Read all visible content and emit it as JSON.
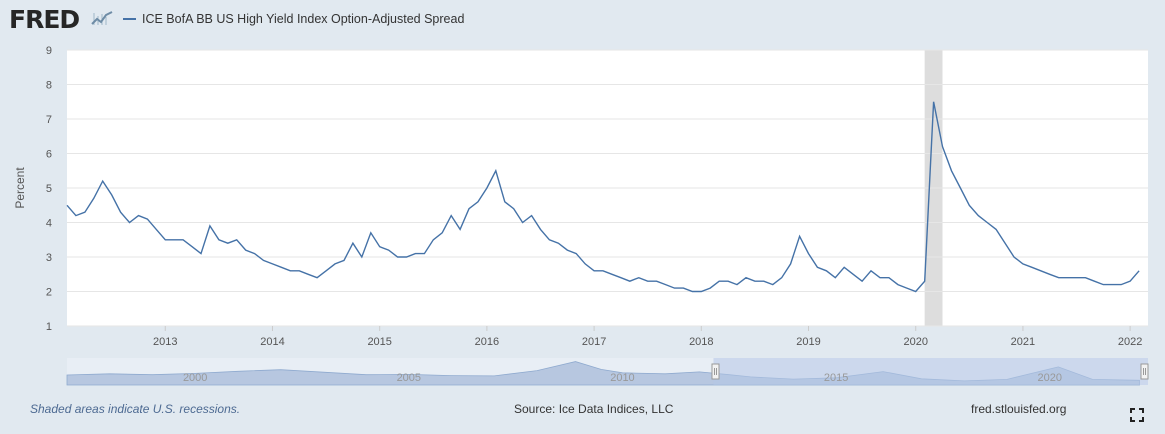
{
  "header": {
    "logo_text": "FRED",
    "logo_mark": "line-graph-icon",
    "legend_label": "ICE BofA BB US High Yield Index Option-Adjusted Spread",
    "series_color": "#4572a7"
  },
  "footer": {
    "recession_note": "Shaded areas indicate U.S. recessions.",
    "source": "Source: Ice Data Indices, LLC",
    "site": "fred.stlouisfed.org",
    "fullscreen_icon": "fullscreen-icon"
  },
  "colors": {
    "recession_shade": "#dddddd",
    "navigator_fill": "#b7c7e0",
    "navigator_selection": "#b4c6e6"
  },
  "chart_data": {
    "type": "line",
    "ylabel": "Percent",
    "xlabel": "",
    "ylim": [
      1,
      9
    ],
    "yticks": [
      "1",
      "2",
      "3",
      "4",
      "5",
      "6",
      "7",
      "8",
      "9"
    ],
    "xlim": [
      "2012-02",
      "2022-03"
    ],
    "xticks": [
      "2013",
      "2014",
      "2015",
      "2016",
      "2017",
      "2018",
      "2019",
      "2020",
      "2021",
      "2022"
    ],
    "grid": true,
    "recession": {
      "start": "2020-02",
      "end": "2020-04"
    },
    "series": [
      {
        "name": "ICE BofA BB US High Yield Index Option-Adjusted Spread",
        "x": [
          "2012-02",
          "2012-03",
          "2012-04",
          "2012-05",
          "2012-06",
          "2012-07",
          "2012-08",
          "2012-09",
          "2012-10",
          "2012-11",
          "2012-12",
          "2013-01",
          "2013-02",
          "2013-03",
          "2013-04",
          "2013-05",
          "2013-06",
          "2013-07",
          "2013-08",
          "2013-09",
          "2013-10",
          "2013-11",
          "2013-12",
          "2014-01",
          "2014-02",
          "2014-03",
          "2014-04",
          "2014-05",
          "2014-06",
          "2014-07",
          "2014-08",
          "2014-09",
          "2014-10",
          "2014-11",
          "2014-12",
          "2015-01",
          "2015-02",
          "2015-03",
          "2015-04",
          "2015-05",
          "2015-06",
          "2015-07",
          "2015-08",
          "2015-09",
          "2015-10",
          "2015-11",
          "2015-12",
          "2016-01",
          "2016-02",
          "2016-03",
          "2016-04",
          "2016-05",
          "2016-06",
          "2016-07",
          "2016-08",
          "2016-09",
          "2016-10",
          "2016-11",
          "2016-12",
          "2017-01",
          "2017-02",
          "2017-03",
          "2017-04",
          "2017-05",
          "2017-06",
          "2017-07",
          "2017-08",
          "2017-09",
          "2017-10",
          "2017-11",
          "2017-12",
          "2018-01",
          "2018-02",
          "2018-03",
          "2018-04",
          "2018-05",
          "2018-06",
          "2018-07",
          "2018-08",
          "2018-09",
          "2018-10",
          "2018-11",
          "2018-12",
          "2019-01",
          "2019-02",
          "2019-03",
          "2019-04",
          "2019-05",
          "2019-06",
          "2019-07",
          "2019-08",
          "2019-09",
          "2019-10",
          "2019-11",
          "2019-12",
          "2020-01",
          "2020-02",
          "2020-03",
          "2020-04",
          "2020-05",
          "2020-06",
          "2020-07",
          "2020-08",
          "2020-09",
          "2020-10",
          "2020-11",
          "2020-12",
          "2021-01",
          "2021-02",
          "2021-03",
          "2021-04",
          "2021-05",
          "2021-06",
          "2021-07",
          "2021-08",
          "2021-09",
          "2021-10",
          "2021-11",
          "2021-12",
          "2022-01",
          "2022-02"
        ],
        "values": [
          4.5,
          4.2,
          4.3,
          4.7,
          5.2,
          4.8,
          4.3,
          4.0,
          4.2,
          4.1,
          3.8,
          3.5,
          3.5,
          3.5,
          3.3,
          3.1,
          3.9,
          3.5,
          3.4,
          3.5,
          3.2,
          3.1,
          2.9,
          2.8,
          2.7,
          2.6,
          2.6,
          2.5,
          2.4,
          2.6,
          2.8,
          2.9,
          3.4,
          3.0,
          3.7,
          3.3,
          3.2,
          3.0,
          3.0,
          3.1,
          3.1,
          3.5,
          3.7,
          4.2,
          3.8,
          4.4,
          4.6,
          5.0,
          5.5,
          4.6,
          4.4,
          4.0,
          4.2,
          3.8,
          3.5,
          3.4,
          3.2,
          3.1,
          2.8,
          2.6,
          2.6,
          2.5,
          2.4,
          2.3,
          2.4,
          2.3,
          2.3,
          2.2,
          2.1,
          2.1,
          2.0,
          2.0,
          2.1,
          2.3,
          2.3,
          2.2,
          2.4,
          2.3,
          2.3,
          2.2,
          2.4,
          2.8,
          3.6,
          3.1,
          2.7,
          2.6,
          2.4,
          2.7,
          2.5,
          2.3,
          2.6,
          2.4,
          2.4,
          2.2,
          2.1,
          2.0,
          2.3,
          7.5,
          6.2,
          5.5,
          5.0,
          4.5,
          4.2,
          4.0,
          3.8,
          3.4,
          3.0,
          2.8,
          2.7,
          2.6,
          2.5,
          2.4,
          2.4,
          2.4,
          2.4,
          2.3,
          2.2,
          2.2,
          2.2,
          2.3,
          2.6
        ]
      }
    ],
    "navigator": {
      "xticks": [
        "2000",
        "2005",
        "2010",
        "2015",
        "2020"
      ],
      "selection": {
        "start": "2012-02",
        "end": "2022-02"
      }
    }
  }
}
